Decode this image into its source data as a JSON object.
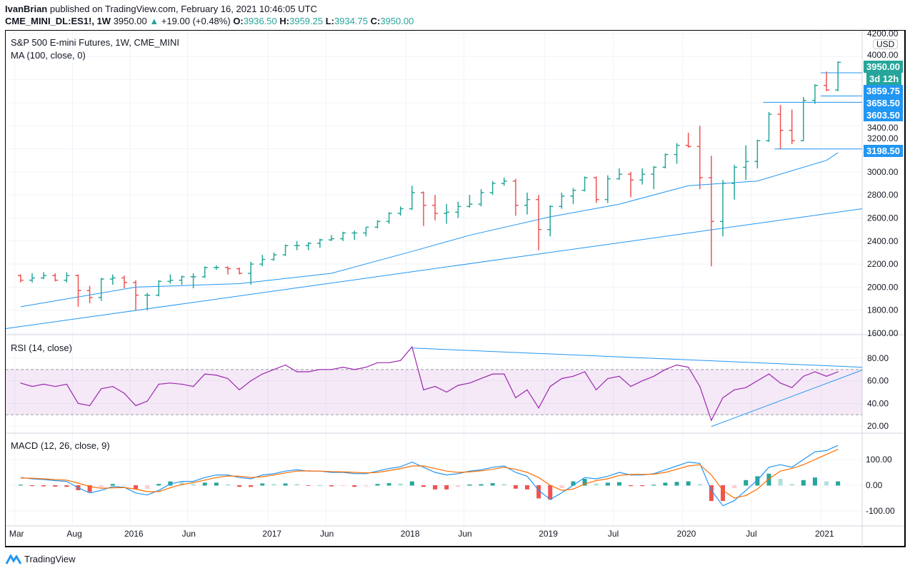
{
  "header": {
    "publisher": "IvanBrian",
    "published_text": "published on TradingView.com, February 16, 2021 10:46:05 UTC",
    "symbol": "CME_MINI_DL:ES1!, 1W",
    "last": "3950.00",
    "change": "+19.00 (+0.48%)",
    "o_label": "O:",
    "open": "3936.50",
    "h_label": "H:",
    "high": "3959.25",
    "l_label": "L:",
    "low": "3934.75",
    "c_label": "C:",
    "close": "3950.00"
  },
  "legend": {
    "title": "S&P 500 E-mini Futures, 1W, CME_MINI",
    "ma": "MA (100, close, 0)",
    "rsi": "RSI (14, close)",
    "macd": "MACD (12, 26, close, 9)"
  },
  "currency": "USD",
  "price_tags": {
    "last": "3950.00",
    "countdown": "3d 12h",
    "levels": [
      "3859.75",
      "3658.50",
      "3603.50",
      "3198.50"
    ]
  },
  "colors": {
    "up": "#26a69a",
    "down": "#ef5350",
    "ma": "#2196f3",
    "rsi": "#9c27b0",
    "macd": "#2196f3",
    "signal": "#ff6d00",
    "tag_blue": "#2196f3"
  },
  "footer": {
    "brand": "TradingView"
  },
  "chart_data": [
    {
      "type": "ohlc",
      "title": "S&P 500 E-mini Futures, 1W, CME_MINI",
      "ylim": [
        1600,
        4200
      ],
      "yticks": [
        "4200.00",
        "4000.00",
        "3400.00",
        "3200.00",
        "3000.00",
        "2800.00",
        "2600.00",
        "2400.00",
        "2200.00",
        "2000.00",
        "1800.00",
        "1600.00"
      ],
      "xticks": [
        "Mar",
        "Aug",
        "2016",
        "Jun",
        "2017",
        "Jun",
        "2018",
        "Jun",
        "2019",
        "Jul",
        "2020",
        "Jul",
        "2021"
      ],
      "xtick_dates": [
        "2015-03",
        "2015-08",
        "2016-01",
        "2016-06",
        "2017-01",
        "2017-06",
        "2018-01",
        "2018-06",
        "2019-01",
        "2019-07",
        "2020-01",
        "2020-07",
        "2021-01"
      ],
      "dates": [
        "2015-03",
        "2015-04",
        "2015-05",
        "2015-06",
        "2015-07",
        "2015-08",
        "2015-09",
        "2015-10",
        "2015-11",
        "2015-12",
        "2016-01",
        "2016-02",
        "2016-03",
        "2016-04",
        "2016-05",
        "2016-06",
        "2016-07",
        "2016-08",
        "2016-09",
        "2016-10",
        "2016-11",
        "2016-12",
        "2017-01",
        "2017-02",
        "2017-03",
        "2017-04",
        "2017-05",
        "2017-06",
        "2017-07",
        "2017-08",
        "2017-09",
        "2017-10",
        "2017-11",
        "2017-12",
        "2018-01",
        "2018-02",
        "2018-03",
        "2018-04",
        "2018-05",
        "2018-06",
        "2018-07",
        "2018-08",
        "2018-09",
        "2018-10",
        "2018-11",
        "2018-12",
        "2019-01",
        "2019-02",
        "2019-03",
        "2019-04",
        "2019-05",
        "2019-06",
        "2019-07",
        "2019-08",
        "2019-09",
        "2019-10",
        "2019-11",
        "2019-12",
        "2020-01",
        "2020-02",
        "2020-03",
        "2020-04",
        "2020-05",
        "2020-06",
        "2020-07",
        "2020-08",
        "2020-09",
        "2020-10",
        "2020-11",
        "2020-12",
        "2021-01",
        "2021-02"
      ],
      "ohlc": [
        [
          2100,
          2110,
          2040,
          2060
        ],
        [
          2060,
          2120,
          2040,
          2080
        ],
        [
          2080,
          2130,
          2070,
          2100
        ],
        [
          2100,
          2120,
          2050,
          2060
        ],
        [
          2060,
          2130,
          2040,
          2100
        ],
        [
          2100,
          2110,
          1830,
          1970
        ],
        [
          1970,
          2010,
          1860,
          1910
        ],
        [
          1910,
          2080,
          1880,
          2070
        ],
        [
          2070,
          2110,
          2020,
          2080
        ],
        [
          2080,
          2100,
          1990,
          2040
        ],
        [
          2040,
          2060,
          1800,
          1930
        ],
        [
          1930,
          1950,
          1800,
          1930
        ],
        [
          1930,
          2060,
          1920,
          2050
        ],
        [
          2050,
          2110,
          2030,
          2060
        ],
        [
          2060,
          2100,
          2020,
          2090
        ],
        [
          2090,
          2120,
          1990,
          2090
        ],
        [
          2090,
          2180,
          2080,
          2170
        ],
        [
          2170,
          2190,
          2150,
          2170
        ],
        [
          2170,
          2180,
          2110,
          2160
        ],
        [
          2160,
          2170,
          2110,
          2120
        ],
        [
          2120,
          2220,
          2020,
          2200
        ],
        [
          2200,
          2280,
          2180,
          2240
        ],
        [
          2240,
          2300,
          2230,
          2280
        ],
        [
          2280,
          2370,
          2270,
          2360
        ],
        [
          2360,
          2400,
          2320,
          2360
        ],
        [
          2360,
          2390,
          2320,
          2380
        ],
        [
          2380,
          2420,
          2340,
          2410
        ],
        [
          2410,
          2450,
          2400,
          2420
        ],
        [
          2420,
          2480,
          2400,
          2470
        ],
        [
          2470,
          2490,
          2410,
          2470
        ],
        [
          2470,
          2520,
          2440,
          2520
        ],
        [
          2520,
          2580,
          2510,
          2570
        ],
        [
          2570,
          2650,
          2550,
          2640
        ],
        [
          2640,
          2700,
          2620,
          2680
        ],
        [
          2680,
          2880,
          2670,
          2820
        ],
        [
          2820,
          2830,
          2530,
          2710
        ],
        [
          2710,
          2800,
          2580,
          2640
        ],
        [
          2640,
          2720,
          2550,
          2650
        ],
        [
          2650,
          2740,
          2600,
          2700
        ],
        [
          2700,
          2800,
          2690,
          2720
        ],
        [
          2720,
          2850,
          2700,
          2820
        ],
        [
          2820,
          2920,
          2800,
          2900
        ],
        [
          2900,
          2950,
          2880,
          2920
        ],
        [
          2920,
          2940,
          2620,
          2710
        ],
        [
          2710,
          2820,
          2630,
          2760
        ],
        [
          2760,
          2800,
          2320,
          2500
        ],
        [
          2500,
          2710,
          2440,
          2700
        ],
        [
          2700,
          2820,
          2680,
          2790
        ],
        [
          2790,
          2860,
          2720,
          2840
        ],
        [
          2840,
          2960,
          2830,
          2950
        ],
        [
          2950,
          2960,
          2730,
          2760
        ],
        [
          2760,
          2970,
          2730,
          2940
        ],
        [
          2940,
          3030,
          2930,
          2980
        ],
        [
          2980,
          3000,
          2780,
          2930
        ],
        [
          2930,
          3030,
          2890,
          2980
        ],
        [
          2980,
          3050,
          2850,
          3040
        ],
        [
          3040,
          3160,
          3030,
          3150
        ],
        [
          3150,
          3250,
          3070,
          3230
        ],
        [
          3230,
          3340,
          3210,
          3220
        ],
        [
          3220,
          3400,
          2850,
          2950
        ],
        [
          2950,
          3140,
          2180,
          2570
        ],
        [
          2570,
          2930,
          2440,
          2900
        ],
        [
          2900,
          3060,
          2760,
          3040
        ],
        [
          3040,
          3230,
          2930,
          3090
        ],
        [
          3090,
          3280,
          3030,
          3270
        ],
        [
          3270,
          3520,
          3260,
          3500
        ],
        [
          3500,
          3580,
          3200,
          3360
        ],
        [
          3360,
          3540,
          3240,
          3270
        ],
        [
          3270,
          3650,
          3270,
          3620
        ],
        [
          3620,
          3760,
          3590,
          3750
        ],
        [
          3750,
          3870,
          3700,
          3710
        ],
        [
          3710,
          3959.25,
          3700,
          3950
        ]
      ],
      "ma100": [
        [
          "2015-03",
          1830
        ],
        [
          "2016-01",
          2000
        ],
        [
          "2016-10",
          2030
        ],
        [
          "2017-06",
          2120
        ],
        [
          "2018-01",
          2310
        ],
        [
          "2018-06",
          2450
        ],
        [
          "2019-01",
          2610
        ],
        [
          "2019-07",
          2720
        ],
        [
          "2020-01",
          2880
        ],
        [
          "2020-07",
          2920
        ],
        [
          "2021-01",
          3100
        ],
        [
          "2021-02",
          3166
        ]
      ],
      "trendline": [
        [
          "2015-02",
          1640
        ],
        [
          "2021-05",
          2680
        ]
      ],
      "levels": [
        {
          "value": 3859.75,
          "from": "2021-01"
        },
        {
          "value": 3658.5,
          "from": "2021-01"
        },
        {
          "value": 3603.5,
          "from": "2020-08"
        },
        {
          "value": 3198.5,
          "from": "2020-09"
        }
      ]
    },
    {
      "type": "line",
      "title": "RSI (14, close)",
      "ylim": [
        15,
        95
      ],
      "yticks": [
        "80.00",
        "60.00",
        "40.00",
        "20.00"
      ],
      "bands": [
        30,
        70
      ],
      "values": [
        58,
        55,
        57,
        55,
        57,
        40,
        38,
        53,
        55,
        49,
        38,
        42,
        57,
        58,
        57,
        55,
        66,
        65,
        62,
        52,
        60,
        66,
        70,
        74,
        68,
        68,
        70,
        70,
        72,
        70,
        72,
        76,
        76,
        78,
        90,
        52,
        55,
        50,
        56,
        58,
        62,
        66,
        66,
        45,
        52,
        36,
        55,
        62,
        64,
        68,
        52,
        62,
        64,
        55,
        60,
        64,
        70,
        74,
        72,
        55,
        25,
        45,
        52,
        54,
        60,
        66,
        58,
        54,
        64,
        68,
        64,
        68
      ],
      "trendlines": [
        [
          [
            "2018-01",
            89
          ],
          [
            "2021-05",
            72
          ]
        ],
        [
          [
            "2020-03",
            19.5
          ],
          [
            "2021-05",
            69.5
          ]
        ]
      ]
    },
    {
      "type": "line",
      "title": "MACD (12, 26, close, 9)",
      "ylim": [
        -130,
        180
      ],
      "yticks": [
        "100.00",
        "0.00",
        "-100.00"
      ],
      "macd": [
        30,
        25,
        22,
        18,
        15,
        -10,
        -30,
        -20,
        -5,
        -8,
        -30,
        -38,
        -20,
        5,
        15,
        15,
        30,
        40,
        40,
        30,
        25,
        40,
        45,
        55,
        60,
        55,
        55,
        50,
        50,
        45,
        45,
        55,
        65,
        72,
        90,
        70,
        50,
        40,
        45,
        55,
        60,
        70,
        75,
        50,
        35,
        -20,
        -55,
        -30,
        0,
        30,
        25,
        35,
        50,
        40,
        40,
        45,
        60,
        75,
        90,
        85,
        -20,
        -80,
        -60,
        -20,
        20,
        70,
        80,
        70,
        100,
        130,
        135,
        155
      ],
      "signal": [
        28,
        27,
        25,
        22,
        20,
        8,
        -5,
        -12,
        -10,
        -9,
        -15,
        -25,
        -25,
        -10,
        3,
        10,
        20,
        30,
        36,
        35,
        30,
        33,
        40,
        48,
        55,
        56,
        55,
        53,
        52,
        50,
        48,
        50,
        57,
        65,
        75,
        75,
        65,
        55,
        50,
        52,
        56,
        62,
        70,
        62,
        50,
        30,
        0,
        -20,
        -15,
        5,
        18,
        25,
        38,
        42,
        42,
        43,
        50,
        62,
        75,
        80,
        40,
        -20,
        -50,
        -40,
        -15,
        25,
        55,
        65,
        80,
        100,
        120,
        140
      ]
    }
  ]
}
